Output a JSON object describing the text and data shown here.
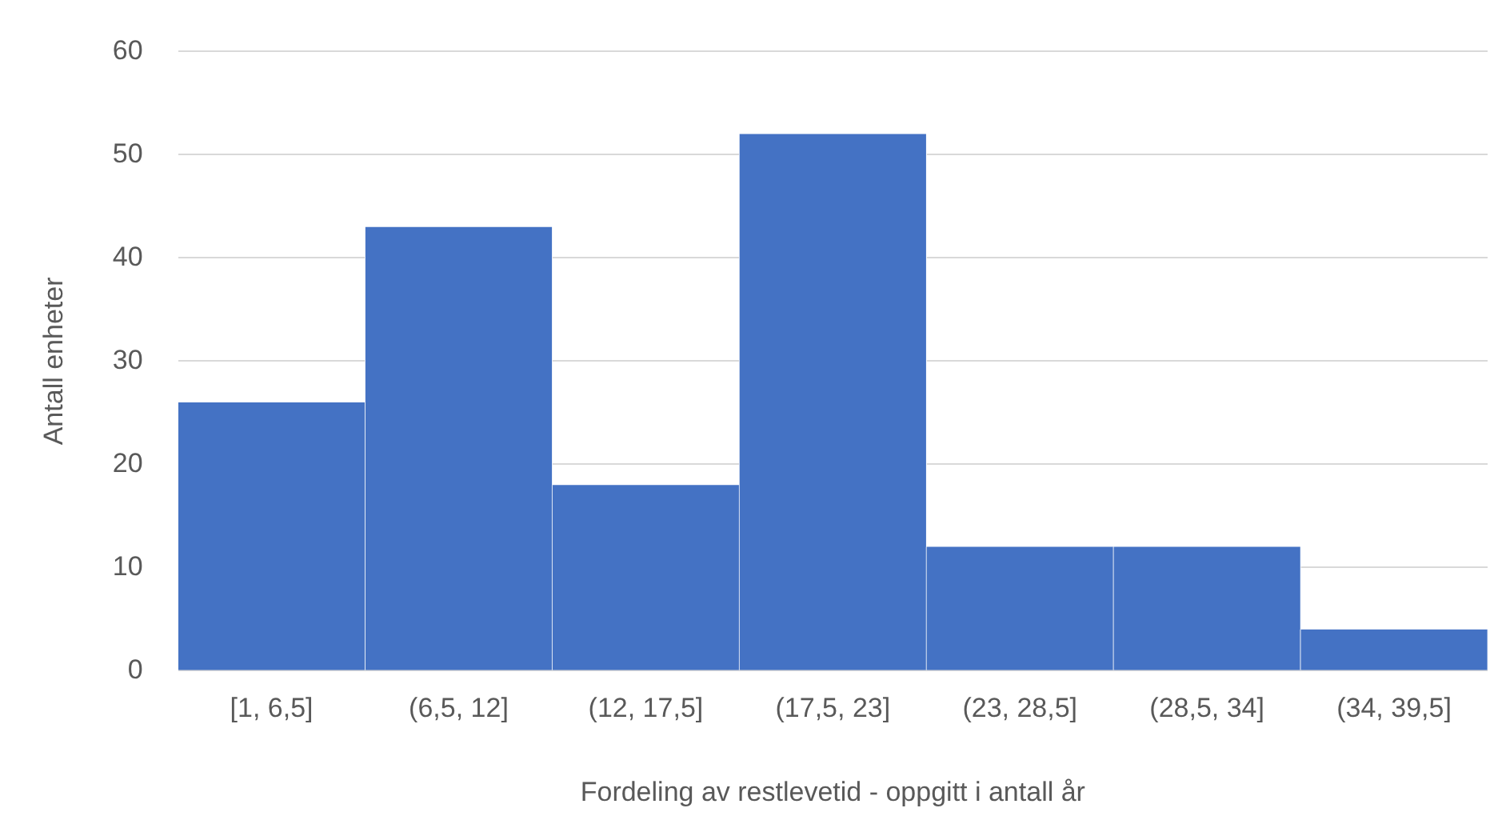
{
  "chart_data": {
    "type": "bar",
    "xlabel": "Fordeling av restlevetid - oppgitt i antall år",
    "ylabel": "Antall enheter",
    "categories": [
      "[1, 6,5]",
      "(6,5, 12]",
      "(12, 17,5]",
      "(17,5, 23]",
      "(23, 28,5]",
      "(28,5, 34]",
      "(34, 39,5]"
    ],
    "values": [
      26,
      43,
      18,
      52,
      12,
      12,
      4
    ],
    "color": "#4472c4",
    "ylim": [
      0,
      60
    ],
    "yticks": [
      0,
      10,
      20,
      30,
      40,
      50,
      60
    ],
    "grid": "y",
    "legend": false
  }
}
